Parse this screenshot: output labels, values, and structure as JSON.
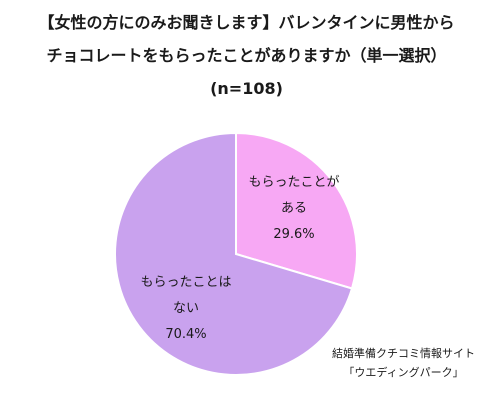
{
  "chart_data": {
    "type": "pie",
    "title_lines": [
      "【女性の方にのみお聞きします】バレンタインに男性から",
      "チョコレートをもらったことがありますか（単一選択）",
      "(n=108)"
    ],
    "slices": [
      {
        "label_lines": [
          "もらったことが",
          "ある"
        ],
        "value": 29.6,
        "value_text": "29.6%",
        "color": "#f7a8f4"
      },
      {
        "label_lines": [
          "もらったことは",
          "ない"
        ],
        "value": 70.4,
        "value_text": "70.4%",
        "color": "#c9a2ee"
      }
    ],
    "stroke_color": "#ffffff",
    "start": "12 o'clock",
    "direction": "clockwise"
  },
  "credit": {
    "line1": "結婚準備クチコミ情報サイト",
    "line2": "「ウエディングパーク」"
  }
}
